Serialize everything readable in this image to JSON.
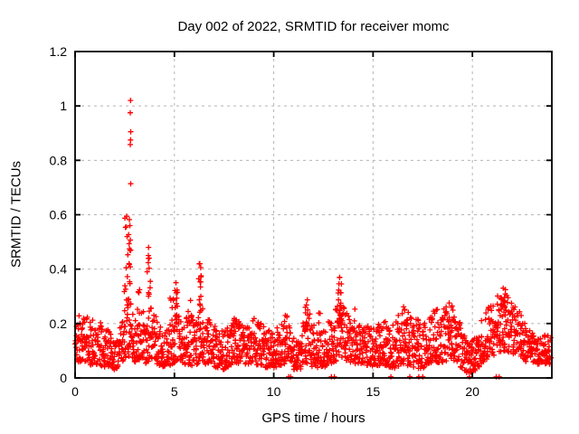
{
  "chart_data": {
    "type": "scatter",
    "title": "Day 002 of 2022, SRMTID for receiver momc",
    "xlabel": "GPS time / hours",
    "ylabel": "SRMTID / TECUs",
    "xlim": [
      0,
      24
    ],
    "ylim": [
      0,
      1.2
    ],
    "xticks": [
      0,
      5,
      10,
      15,
      20
    ],
    "xtick_labels": [
      "0",
      "5",
      "10",
      "15",
      "20"
    ],
    "yticks": [
      0,
      0.2,
      0.4,
      0.6,
      0.8,
      1,
      1.2
    ],
    "ytick_labels": [
      "0",
      "0.2",
      "0.4",
      "0.6",
      "0.8",
      "1",
      "1.2"
    ],
    "grid": true,
    "legend": "none",
    "marker": "plus",
    "marker_size": 7,
    "marker_color": "#ff0000",
    "grid_color": "#b5b5b5",
    "border_color": "#000000",
    "background": "#ffffff",
    "outliers": [
      [
        2.79,
        1.02
      ],
      [
        2.78,
        0.975
      ],
      [
        2.8,
        0.905
      ],
      [
        2.79,
        0.875
      ],
      [
        2.78,
        0.858
      ],
      [
        2.8,
        0.714
      ],
      [
        6.28,
        0.42
      ],
      [
        13.32,
        0.37
      ],
      [
        21.55,
        0.33
      ],
      [
        5.08,
        0.35
      ],
      [
        3.7,
        0.48
      ]
    ],
    "scatter_model": {
      "comment": "dense 30s-epoch scatter; band envelope [hour, min, max] read from plot",
      "seed": 11,
      "n_points": 2100,
      "skew": 1.3,
      "baseline_envelope": [
        [
          0.0,
          0.05,
          0.22
        ],
        [
          0.3,
          0.06,
          0.24
        ],
        [
          0.7,
          0.05,
          0.22
        ],
        [
          1.2,
          0.04,
          0.21
        ],
        [
          1.7,
          0.04,
          0.18
        ],
        [
          2.0,
          0.03,
          0.13
        ],
        [
          2.3,
          0.05,
          0.2
        ],
        [
          2.6,
          0.08,
          0.3
        ],
        [
          2.9,
          0.07,
          0.28
        ],
        [
          3.1,
          0.05,
          0.2
        ],
        [
          3.35,
          0.07,
          0.28
        ],
        [
          3.6,
          0.05,
          0.22
        ],
        [
          3.85,
          0.06,
          0.27
        ],
        [
          4.1,
          0.05,
          0.22
        ],
        [
          4.5,
          0.04,
          0.16
        ],
        [
          4.9,
          0.05,
          0.22
        ],
        [
          5.1,
          0.06,
          0.28
        ],
        [
          5.4,
          0.04,
          0.2
        ],
        [
          5.75,
          0.05,
          0.26
        ],
        [
          6.0,
          0.04,
          0.2
        ],
        [
          6.3,
          0.06,
          0.28
        ],
        [
          6.6,
          0.05,
          0.24
        ],
        [
          7.0,
          0.04,
          0.2
        ],
        [
          7.5,
          0.03,
          0.17
        ],
        [
          8.0,
          0.05,
          0.22
        ],
        [
          8.5,
          0.05,
          0.2
        ],
        [
          9.0,
          0.05,
          0.22
        ],
        [
          9.5,
          0.04,
          0.2
        ],
        [
          10.0,
          0.03,
          0.18
        ],
        [
          10.5,
          0.05,
          0.22
        ],
        [
          11.0,
          0.03,
          0.17
        ],
        [
          11.3,
          0.03,
          0.15
        ],
        [
          11.65,
          0.05,
          0.26
        ],
        [
          12.0,
          0.04,
          0.22
        ],
        [
          12.4,
          0.03,
          0.17
        ],
        [
          12.7,
          0.04,
          0.2
        ],
        [
          13.0,
          0.05,
          0.24
        ],
        [
          13.35,
          0.08,
          0.3
        ],
        [
          13.7,
          0.06,
          0.24
        ],
        [
          14.1,
          0.05,
          0.21
        ],
        [
          14.5,
          0.05,
          0.19
        ],
        [
          15.0,
          0.04,
          0.19
        ],
        [
          15.5,
          0.05,
          0.21
        ],
        [
          16.0,
          0.03,
          0.21
        ],
        [
          16.5,
          0.05,
          0.26
        ],
        [
          17.0,
          0.04,
          0.23
        ],
        [
          17.5,
          0.03,
          0.19
        ],
        [
          18.0,
          0.05,
          0.25
        ],
        [
          18.6,
          0.06,
          0.26
        ],
        [
          19.0,
          0.07,
          0.27
        ],
        [
          19.4,
          0.04,
          0.2
        ],
        [
          19.8,
          0.01,
          0.13
        ],
        [
          20.2,
          0.03,
          0.16
        ],
        [
          20.6,
          0.06,
          0.24
        ],
        [
          21.0,
          0.08,
          0.28
        ],
        [
          21.5,
          0.1,
          0.32
        ],
        [
          21.9,
          0.09,
          0.3
        ],
        [
          22.3,
          0.08,
          0.26
        ],
        [
          22.7,
          0.06,
          0.19
        ],
        [
          23.2,
          0.05,
          0.16
        ],
        [
          23.6,
          0.05,
          0.16
        ],
        [
          24.0,
          0.05,
          0.15
        ]
      ],
      "clusters": [
        {
          "x": 2.6,
          "dx": 0.28,
          "ymin": 0.26,
          "ymax": 0.6,
          "n": 18
        },
        {
          "x": 2.75,
          "dx": 0.1,
          "ymin": 0.3,
          "ymax": 0.58,
          "n": 8
        },
        {
          "x": 3.72,
          "dx": 0.22,
          "ymin": 0.28,
          "ymax": 0.47,
          "n": 11
        },
        {
          "x": 3.2,
          "dx": 0.15,
          "ymin": 0.25,
          "ymax": 0.33,
          "n": 4
        },
        {
          "x": 4.85,
          "dx": 0.2,
          "ymin": 0.24,
          "ymax": 0.31,
          "n": 5
        },
        {
          "x": 5.1,
          "dx": 0.15,
          "ymin": 0.22,
          "ymax": 0.34,
          "n": 7
        },
        {
          "x": 5.78,
          "dx": 0.18,
          "ymin": 0.2,
          "ymax": 0.3,
          "n": 6
        },
        {
          "x": 6.3,
          "dx": 0.15,
          "ymin": 0.24,
          "ymax": 0.43,
          "n": 14
        },
        {
          "x": 8.05,
          "dx": 0.12,
          "ymin": 0.17,
          "ymax": 0.23,
          "n": 4
        },
        {
          "x": 10.63,
          "dx": 0.1,
          "ymin": 0.22,
          "ymax": 0.25,
          "n": 3
        },
        {
          "x": 11.65,
          "dx": 0.15,
          "ymin": 0.18,
          "ymax": 0.3,
          "n": 8
        },
        {
          "x": 12.3,
          "dx": 0.1,
          "ymin": 0.18,
          "ymax": 0.24,
          "n": 3
        },
        {
          "x": 13.33,
          "dx": 0.18,
          "ymin": 0.2,
          "ymax": 0.37,
          "n": 18
        },
        {
          "x": 14.1,
          "dx": 0.04,
          "ymin": 0.25,
          "ymax": 0.26,
          "n": 1
        },
        {
          "x": 16.6,
          "dx": 0.2,
          "ymin": 0.18,
          "ymax": 0.27,
          "n": 5
        },
        {
          "x": 17.3,
          "dx": 0.15,
          "ymin": 0.18,
          "ymax": 0.29,
          "n": 3
        },
        {
          "x": 18.9,
          "dx": 0.25,
          "ymin": 0.18,
          "ymax": 0.28,
          "n": 6
        },
        {
          "x": 21.5,
          "dx": 0.35,
          "ymin": 0.22,
          "ymax": 0.33,
          "n": 10
        }
      ],
      "zeros": [
        10.75,
        10.85,
        12.9,
        13.05,
        15.9,
        16.85,
        17.3,
        17.5,
        19.85,
        21.2,
        21.35
      ]
    }
  }
}
